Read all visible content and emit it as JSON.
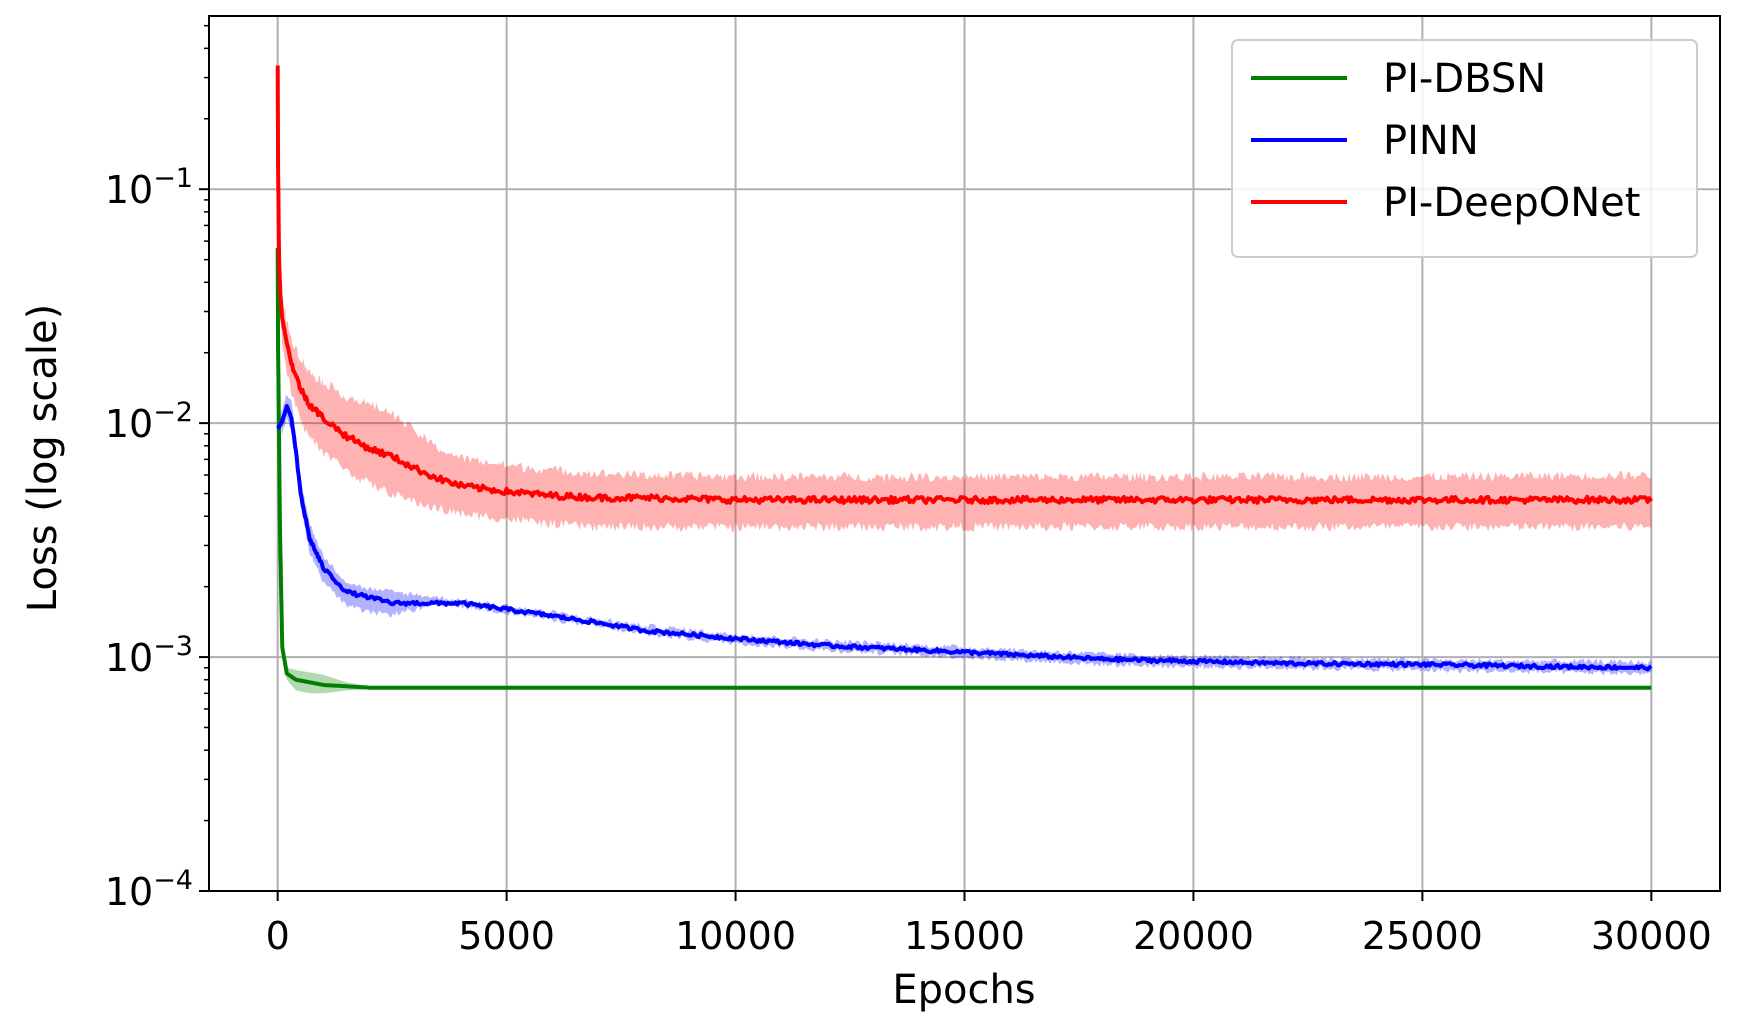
{
  "chart_data": {
    "type": "line",
    "xlabel": "Epochs",
    "ylabel": "Loss (log scale)",
    "xlim": [
      -1500,
      31500
    ],
    "ylim": [
      0.0001,
      0.55
    ],
    "yscale": "log",
    "grid": true,
    "legend": "top-right",
    "xticks": [
      0,
      5000,
      10000,
      15000,
      20000,
      25000,
      30000
    ],
    "xtick_labels": [
      "0",
      "5000",
      "10000",
      "15000",
      "20000",
      "25000",
      "30000"
    ],
    "yticks": [
      {
        "value": 0.1,
        "base": "10",
        "exp": "−1"
      },
      {
        "value": 0.01,
        "base": "10",
        "exp": "−2"
      },
      {
        "value": 0.001,
        "base": "10",
        "exp": "−3"
      },
      {
        "value": 0.0001,
        "base": "10",
        "exp": "−4"
      }
    ],
    "series": [
      {
        "name": "PI-DBSN",
        "color": "#008000",
        "band_color": "#008000",
        "x": [
          0,
          10,
          50,
          100,
          200,
          400,
          700,
          1000,
          1500,
          2000,
          3000,
          5000,
          10000,
          15000,
          20000,
          25000,
          30000
        ],
        "y": [
          0.056,
          0.02,
          0.0035,
          0.0011,
          0.00085,
          0.0008,
          0.00078,
          0.00076,
          0.00075,
          0.00074,
          0.00074,
          0.00074,
          0.00074,
          0.00074,
          0.00074,
          0.00074,
          0.00074
        ],
        "upper": [
          0.056,
          0.02,
          0.0036,
          0.0012,
          0.0009,
          0.00088,
          0.00086,
          0.00084,
          0.00078,
          0.00075,
          0.00074,
          0.00074,
          0.00074,
          0.00074,
          0.00074,
          0.00074,
          0.00074
        ],
        "lower": [
          0.056,
          0.02,
          0.0034,
          0.001,
          0.0008,
          0.00072,
          0.0007,
          0.0007,
          0.00072,
          0.00073,
          0.00074,
          0.00074,
          0.00074,
          0.00074,
          0.00074,
          0.00074,
          0.00074
        ]
      },
      {
        "name": "PINN",
        "color": "#0000ff",
        "band_color": "#0000ff",
        "x": [
          0,
          50,
          100,
          200,
          300,
          400,
          500,
          700,
          1000,
          1500,
          2000,
          2500,
          3000,
          3500,
          4000,
          5000,
          6000,
          7000,
          8000,
          10000,
          12000,
          15000,
          18000,
          20000,
          22000,
          25000,
          28000,
          30000
        ],
        "y": [
          0.0095,
          0.0098,
          0.0102,
          0.0118,
          0.0105,
          0.0075,
          0.005,
          0.0032,
          0.0024,
          0.0019,
          0.0018,
          0.0017,
          0.0017,
          0.0017,
          0.0017,
          0.0016,
          0.0015,
          0.0014,
          0.0013,
          0.0012,
          0.00112,
          0.00105,
          0.00098,
          0.00096,
          0.00094,
          0.00093,
          0.00091,
          0.0009
        ],
        "upper": [
          0.0098,
          0.0105,
          0.0115,
          0.0135,
          0.0122,
          0.0086,
          0.0058,
          0.0037,
          0.0027,
          0.0021,
          0.00195,
          0.0019,
          0.00185,
          0.0018,
          0.00175,
          0.00165,
          0.00155,
          0.00145,
          0.00136,
          0.00125,
          0.00117,
          0.0011,
          0.00103,
          0.001,
          0.00099,
          0.00097,
          0.00096,
          0.00095
        ],
        "lower": [
          0.0092,
          0.0092,
          0.0092,
          0.0104,
          0.0092,
          0.0066,
          0.0044,
          0.0028,
          0.0021,
          0.00165,
          0.00155,
          0.00152,
          0.0016,
          0.00165,
          0.00165,
          0.00155,
          0.00145,
          0.00135,
          0.00125,
          0.00115,
          0.00107,
          0.001,
          0.00093,
          0.00091,
          0.0009,
          0.00088,
          0.00086,
          0.00085
        ]
      },
      {
        "name": "PI-DeepONet",
        "color": "#ff0000",
        "band_color": "#ff0000",
        "x": [
          0,
          10,
          30,
          60,
          100,
          200,
          300,
          500,
          700,
          1000,
          1500,
          2000,
          2500,
          3000,
          3500,
          4000,
          5000,
          6000,
          7000,
          8000,
          10000,
          15000,
          20000,
          25000,
          30000
        ],
        "y": [
          0.34,
          0.12,
          0.05,
          0.035,
          0.028,
          0.022,
          0.018,
          0.014,
          0.012,
          0.0105,
          0.0088,
          0.0078,
          0.0072,
          0.0064,
          0.0058,
          0.0054,
          0.0051,
          0.0049,
          0.0048,
          0.0048,
          0.0047,
          0.0047,
          0.0047,
          0.0047,
          0.0047
        ],
        "upper": [
          0.34,
          0.14,
          0.06,
          0.042,
          0.034,
          0.027,
          0.023,
          0.019,
          0.0165,
          0.015,
          0.013,
          0.012,
          0.011,
          0.0092,
          0.0078,
          0.0071,
          0.0066,
          0.0063,
          0.0061,
          0.006,
          0.0059,
          0.0059,
          0.0059,
          0.0059,
          0.006
        ],
        "lower": [
          0.34,
          0.1,
          0.042,
          0.028,
          0.022,
          0.0165,
          0.0135,
          0.0102,
          0.0087,
          0.0075,
          0.0063,
          0.0055,
          0.005,
          0.0046,
          0.0043,
          0.0041,
          0.0039,
          0.0037,
          0.0036,
          0.0036,
          0.0036,
          0.0036,
          0.0036,
          0.0036,
          0.0036
        ]
      }
    ]
  }
}
